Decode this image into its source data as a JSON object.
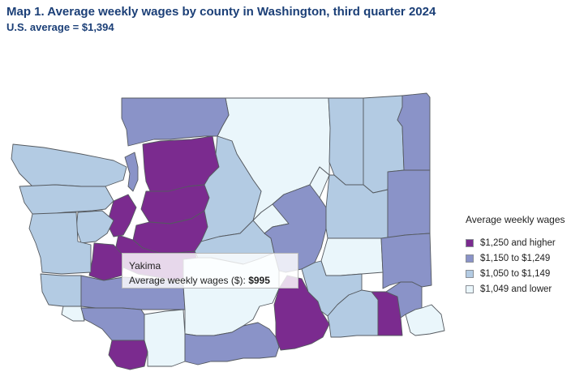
{
  "title": "Map 1. Average weekly wages by county in Washington, third quarter 2024",
  "subtitle": "U.S. average = $1,394",
  "legend": {
    "title": "Average weekly wages",
    "items": [
      {
        "label": "$1,250 and higher",
        "color": "#7b2b8f"
      },
      {
        "label": "$1,150 to $1,249",
        "color": "#8a93c8"
      },
      {
        "label": "$1,050 to $1,149",
        "color": "#b3cbe3"
      },
      {
        "label": "$1,049 and lower",
        "color": "#eaf6fb"
      }
    ]
  },
  "tooltip": {
    "county": "Yakima",
    "label": "Average weekly wages ($):",
    "value": "$995"
  },
  "counties": [
    {
      "name": "Whatcom",
      "class": 1
    },
    {
      "name": "Okanogan",
      "class": 3
    },
    {
      "name": "Ferry",
      "class": 2
    },
    {
      "name": "Stevens",
      "class": 2
    },
    {
      "name": "Pend Oreille",
      "class": 1
    },
    {
      "name": "Skagit",
      "class": 0
    },
    {
      "name": "Snohomish",
      "class": 0
    },
    {
      "name": "King",
      "class": 0
    },
    {
      "name": "Pierce",
      "class": 0
    },
    {
      "name": "Kitsap",
      "class": 0
    },
    {
      "name": "Thurston",
      "class": 0
    },
    {
      "name": "Island",
      "class": 1
    },
    {
      "name": "Clallam",
      "class": 2
    },
    {
      "name": "Jefferson",
      "class": 2
    },
    {
      "name": "Grays Harbor",
      "class": 2
    },
    {
      "name": "Mason",
      "class": 2
    },
    {
      "name": "Pacific",
      "class": 2
    },
    {
      "name": "Lewis",
      "class": 1
    },
    {
      "name": "Wahkiakum",
      "class": 3
    },
    {
      "name": "Cowlitz",
      "class": 1
    },
    {
      "name": "Clark",
      "class": 0
    },
    {
      "name": "Skamania",
      "class": 3
    },
    {
      "name": "Chelan",
      "class": 2
    },
    {
      "name": "Douglas",
      "class": 3
    },
    {
      "name": "Kittitas",
      "class": 2
    },
    {
      "name": "Yakima",
      "class": 3
    },
    {
      "name": "Klickitat",
      "class": 1
    },
    {
      "name": "Grant",
      "class": 1
    },
    {
      "name": "Lincoln",
      "class": 2
    },
    {
      "name": "Spokane",
      "class": 1
    },
    {
      "name": "Adams",
      "class": 3
    },
    {
      "name": "Whitman",
      "class": 1
    },
    {
      "name": "Benton",
      "class": 0
    },
    {
      "name": "Franklin",
      "class": 2
    },
    {
      "name": "Walla Walla",
      "class": 2
    },
    {
      "name": "Columbia",
      "class": 0
    },
    {
      "name": "Garfield",
      "class": 1
    },
    {
      "name": "Asotin",
      "class": 3
    }
  ]
}
